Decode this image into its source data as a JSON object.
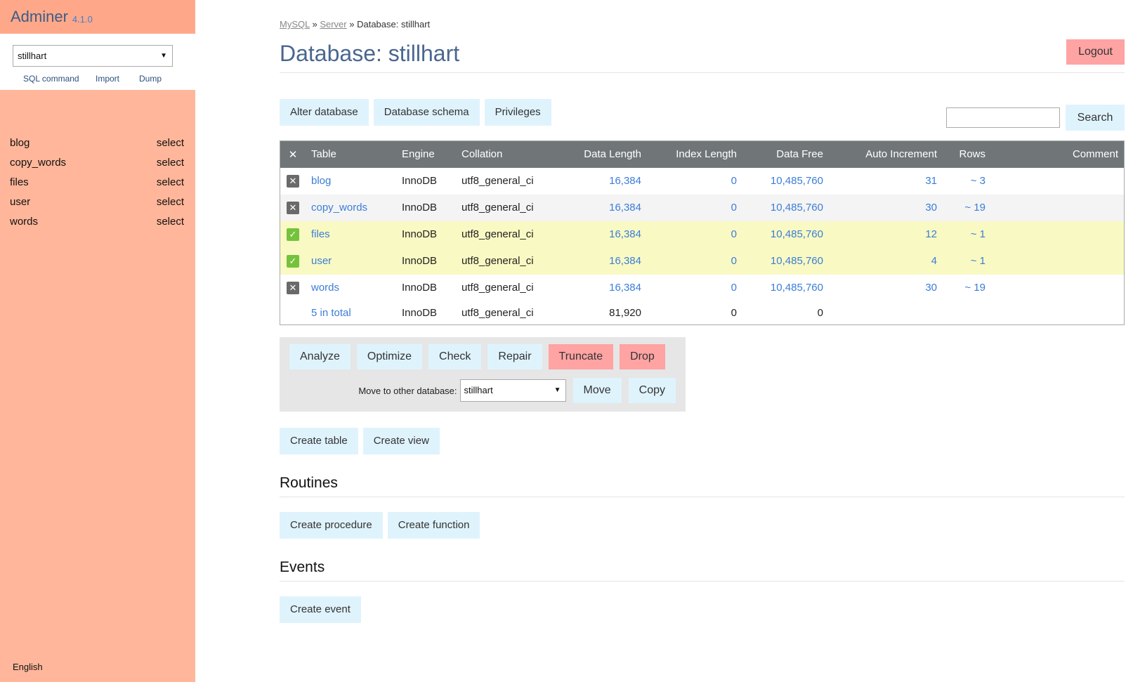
{
  "app": {
    "name": "Adminer",
    "version": "4.1.0"
  },
  "sidebar": {
    "db_selected": "stillhart",
    "links": [
      "SQL command",
      "Import",
      "Dump"
    ],
    "tables": [
      {
        "name": "blog",
        "action": "select"
      },
      {
        "name": "copy_words",
        "action": "select"
      },
      {
        "name": "files",
        "action": "select"
      },
      {
        "name": "user",
        "action": "select"
      },
      {
        "name": "words",
        "action": "select"
      }
    ],
    "language": "English"
  },
  "breadcrumb": {
    "mysql": "MySQL",
    "sep1": " » ",
    "server": "Server",
    "sep2": " » ",
    "current": "Database: stillhart"
  },
  "title": "Database: stillhart",
  "logout_label": "Logout",
  "top_buttons": {
    "alter": "Alter database",
    "schema": "Database schema",
    "privileges": "Privileges"
  },
  "search": {
    "value": "",
    "button": "Search"
  },
  "table": {
    "headers": {
      "check": "✕",
      "table": "Table",
      "engine": "Engine",
      "collation": "Collation",
      "data_length": "Data Length",
      "index_length": "Index Length",
      "data_free": "Data Free",
      "auto_increment": "Auto Increment",
      "rows": "Rows",
      "comment": "Comment"
    },
    "rows": [
      {
        "checked": false,
        "name": "blog",
        "engine": "InnoDB",
        "collation": "utf8_general_ci",
        "data_length": "16,384",
        "index_length": "0",
        "data_free": "10,485,760",
        "auto_increment": "31",
        "rows": "~ 3",
        "comment": ""
      },
      {
        "checked": false,
        "name": "copy_words",
        "engine": "InnoDB",
        "collation": "utf8_general_ci",
        "data_length": "16,384",
        "index_length": "0",
        "data_free": "10,485,760",
        "auto_increment": "30",
        "rows": "~ 19",
        "comment": ""
      },
      {
        "checked": true,
        "name": "files",
        "engine": "InnoDB",
        "collation": "utf8_general_ci",
        "data_length": "16,384",
        "index_length": "0",
        "data_free": "10,485,760",
        "auto_increment": "12",
        "rows": "~ 1",
        "comment": ""
      },
      {
        "checked": true,
        "name": "user",
        "engine": "InnoDB",
        "collation": "utf8_general_ci",
        "data_length": "16,384",
        "index_length": "0",
        "data_free": "10,485,760",
        "auto_increment": "4",
        "rows": "~ 1",
        "comment": ""
      },
      {
        "checked": false,
        "name": "words",
        "engine": "InnoDB",
        "collation": "utf8_general_ci",
        "data_length": "16,384",
        "index_length": "0",
        "data_free": "10,485,760",
        "auto_increment": "30",
        "rows": "~ 19",
        "comment": ""
      }
    ],
    "total": {
      "name": "5 in total",
      "engine": "InnoDB",
      "collation": "utf8_general_ci",
      "data_length": "81,920",
      "index_length": "0",
      "data_free": "0"
    }
  },
  "actions": {
    "analyze": "Analyze",
    "optimize": "Optimize",
    "check": "Check",
    "repair": "Repair",
    "truncate": "Truncate",
    "drop": "Drop",
    "move_label": "Move to other database:",
    "move_target": "stillhart",
    "move": "Move",
    "copy": "Copy"
  },
  "create": {
    "table": "Create table",
    "view": "Create view"
  },
  "routines": {
    "title": "Routines",
    "procedure": "Create procedure",
    "function": "Create function"
  },
  "events": {
    "title": "Events",
    "event": "Create event"
  },
  "colors": {
    "sidebar": "#ffb69a",
    "header_bar": "#ffa889",
    "button": "#dff3fd",
    "danger": "#ffa3a3",
    "link": "#3b7dd8",
    "selected_row": "#f9f9c3"
  }
}
